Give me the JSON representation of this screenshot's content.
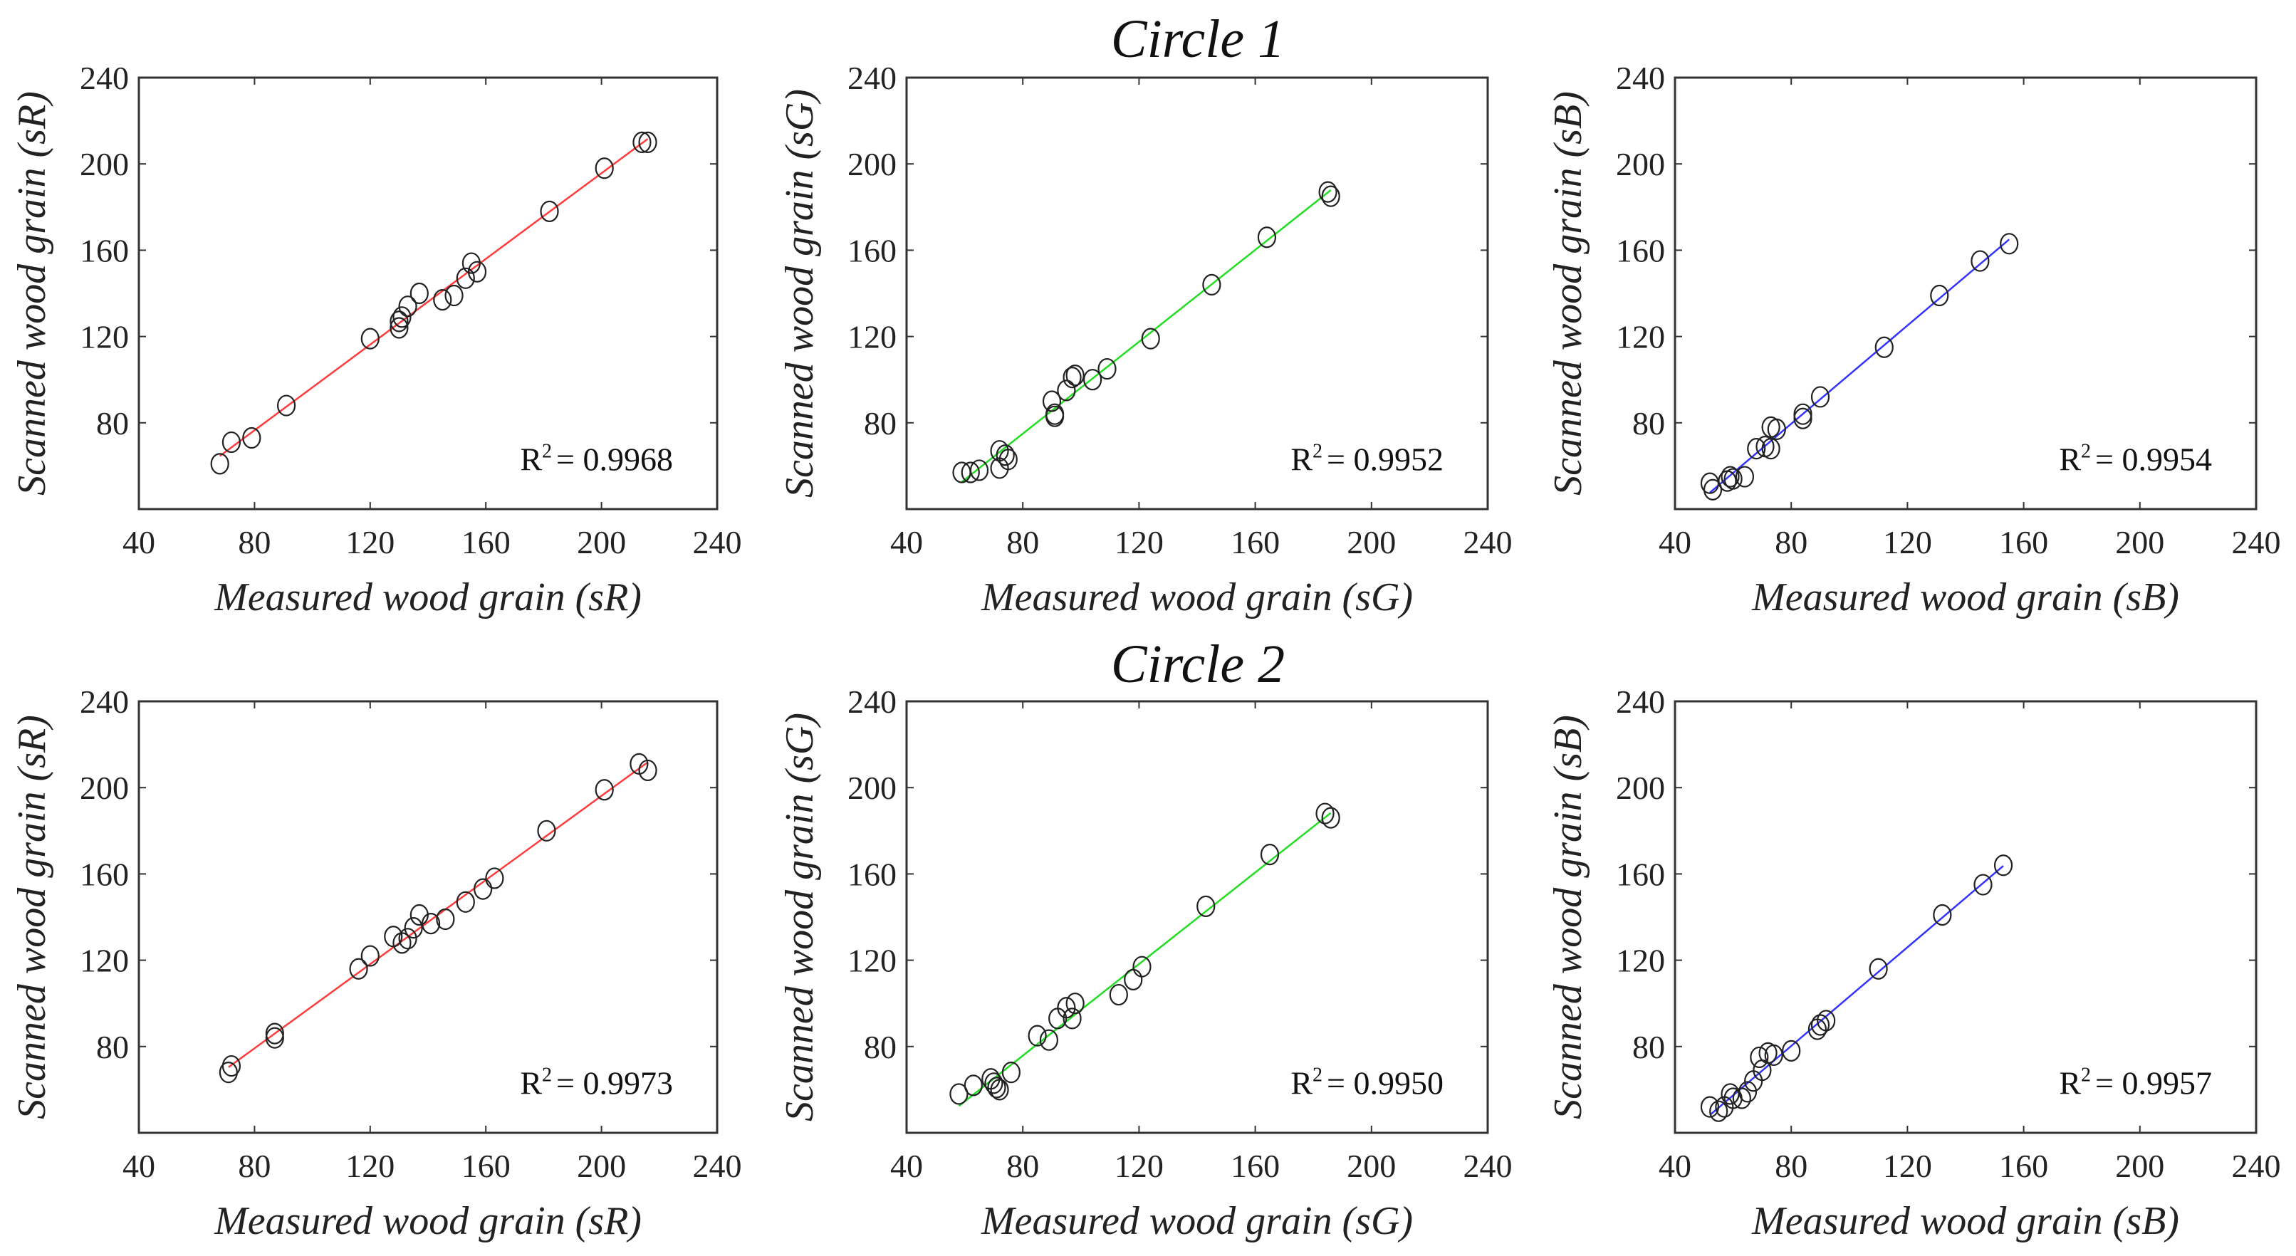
{
  "titles": [
    "Circle 1",
    "Circle 2"
  ],
  "chart_data": [
    {
      "type": "scatter",
      "group": "Circle 1",
      "xlabel": "Measured wood grain (sR)",
      "ylabel": "Scanned wood grain (sR)",
      "xlim": [
        40,
        240
      ],
      "ylim": [
        40,
        240
      ],
      "xticks": [
        40,
        80,
        120,
        160,
        200,
        240
      ],
      "yticks": [
        80,
        120,
        160,
        200,
        240
      ],
      "r2_label": "R",
      "r2_sup": "2",
      "r2_value": "= 0.9968",
      "fit_color": "#ff3b3b",
      "points": [
        [
          68,
          61
        ],
        [
          72,
          71
        ],
        [
          79,
          73
        ],
        [
          91,
          88
        ],
        [
          120,
          119
        ],
        [
          130,
          124
        ],
        [
          130,
          127
        ],
        [
          131,
          129
        ],
        [
          133,
          134
        ],
        [
          137,
          140
        ],
        [
          145,
          137
        ],
        [
          149,
          139
        ],
        [
          153,
          147
        ],
        [
          155,
          154
        ],
        [
          157,
          150
        ],
        [
          182,
          178
        ],
        [
          201,
          198
        ],
        [
          214,
          210
        ],
        [
          216,
          210
        ]
      ]
    },
    {
      "type": "scatter",
      "group": "Circle 1",
      "xlabel": "Measured wood grain (sG)",
      "ylabel": "Scanned wood grain (sG)",
      "xlim": [
        40,
        240
      ],
      "ylim": [
        40,
        240
      ],
      "xticks": [
        40,
        80,
        120,
        160,
        200,
        240
      ],
      "yticks": [
        80,
        120,
        160,
        200,
        240
      ],
      "r2_label": "R",
      "r2_sup": "2",
      "r2_value": "= 0.9952",
      "fit_color": "#22dd22",
      "points": [
        [
          59,
          57
        ],
        [
          62,
          57
        ],
        [
          65,
          58
        ],
        [
          72,
          59
        ],
        [
          72,
          67
        ],
        [
          74,
          65
        ],
        [
          75,
          63
        ],
        [
          90,
          90
        ],
        [
          91,
          84
        ],
        [
          91,
          83
        ],
        [
          95,
          95
        ],
        [
          97,
          101
        ],
        [
          98,
          102
        ],
        [
          104,
          100
        ],
        [
          109,
          105
        ],
        [
          124,
          119
        ],
        [
          145,
          144
        ],
        [
          164,
          166
        ],
        [
          185,
          187
        ],
        [
          186,
          185
        ]
      ]
    },
    {
      "type": "scatter",
      "group": "Circle 1",
      "xlabel": "Measured wood grain (sB)",
      "ylabel": "Scanned wood grain (sB)",
      "xlim": [
        40,
        240
      ],
      "ylim": [
        40,
        240
      ],
      "xticks": [
        40,
        80,
        120,
        160,
        200,
        240
      ],
      "yticks": [
        80,
        120,
        160,
        200,
        240
      ],
      "r2_label": "R",
      "r2_sup": "2",
      "r2_value": "= 0.9954",
      "fit_color": "#3333ff",
      "points": [
        [
          52,
          52
        ],
        [
          53,
          49
        ],
        [
          58,
          53
        ],
        [
          59,
          55
        ],
        [
          60,
          54
        ],
        [
          64,
          55
        ],
        [
          68,
          68
        ],
        [
          71,
          69
        ],
        [
          73,
          78
        ],
        [
          73,
          68
        ],
        [
          75,
          77
        ],
        [
          84,
          84
        ],
        [
          84,
          82
        ],
        [
          90,
          92
        ],
        [
          112,
          115
        ],
        [
          131,
          139
        ],
        [
          145,
          155
        ],
        [
          155,
          163
        ]
      ]
    },
    {
      "type": "scatter",
      "group": "Circle 2",
      "xlabel": "Measured wood grain (sR)",
      "ylabel": "Scanned wood grain (sR)",
      "xlim": [
        40,
        240
      ],
      "ylim": [
        40,
        240
      ],
      "xticks": [
        40,
        80,
        120,
        160,
        200,
        240
      ],
      "yticks": [
        80,
        120,
        160,
        200,
        240
      ],
      "r2_label": "R",
      "r2_sup": "2",
      "r2_value": "= 0.9973",
      "fit_color": "#ff3b3b",
      "points": [
        [
          71,
          68
        ],
        [
          72,
          71
        ],
        [
          87,
          86
        ],
        [
          87,
          84
        ],
        [
          116,
          116
        ],
        [
          120,
          122
        ],
        [
          128,
          131
        ],
        [
          131,
          128
        ],
        [
          133,
          130
        ],
        [
          135,
          135
        ],
        [
          137,
          141
        ],
        [
          141,
          137
        ],
        [
          146,
          139
        ],
        [
          153,
          147
        ],
        [
          159,
          153
        ],
        [
          163,
          158
        ],
        [
          181,
          180
        ],
        [
          201,
          199
        ],
        [
          213,
          211
        ],
        [
          216,
          208
        ]
      ]
    },
    {
      "type": "scatter",
      "group": "Circle 2",
      "xlabel": "Measured wood grain (sG)",
      "ylabel": "Scanned wood grain (sG)",
      "xlim": [
        40,
        240
      ],
      "ylim": [
        40,
        240
      ],
      "xticks": [
        40,
        80,
        120,
        160,
        200,
        240
      ],
      "yticks": [
        80,
        120,
        160,
        200,
        240
      ],
      "r2_label": "R",
      "r2_sup": "2",
      "r2_value": "= 0.9950",
      "fit_color": "#22dd22",
      "points": [
        [
          58,
          58
        ],
        [
          63,
          62
        ],
        [
          69,
          65
        ],
        [
          70,
          63
        ],
        [
          71,
          61
        ],
        [
          72,
          60
        ],
        [
          76,
          68
        ],
        [
          85,
          85
        ],
        [
          89,
          83
        ],
        [
          92,
          93
        ],
        [
          95,
          98
        ],
        [
          97,
          93
        ],
        [
          98,
          100
        ],
        [
          113,
          104
        ],
        [
          118,
          111
        ],
        [
          121,
          117
        ],
        [
          143,
          145
        ],
        [
          165,
          169
        ],
        [
          184,
          188
        ],
        [
          186,
          186
        ]
      ]
    },
    {
      "type": "scatter",
      "group": "Circle 2",
      "xlabel": "Measured wood grain (sB)",
      "ylabel": "Scanned wood grain (sB)",
      "xlim": [
        40,
        240
      ],
      "ylim": [
        40,
        240
      ],
      "xticks": [
        40,
        80,
        120,
        160,
        200,
        240
      ],
      "yticks": [
        80,
        120,
        160,
        200,
        240
      ],
      "r2_label": "R",
      "r2_sup": "2",
      "r2_value": "= 0.9957",
      "fit_color": "#3333ff",
      "points": [
        [
          52,
          52
        ],
        [
          55,
          50
        ],
        [
          57,
          52
        ],
        [
          59,
          58
        ],
        [
          60,
          56
        ],
        [
          63,
          56
        ],
        [
          65,
          59
        ],
        [
          67,
          64
        ],
        [
          69,
          75
        ],
        [
          70,
          69
        ],
        [
          72,
          77
        ],
        [
          74,
          76
        ],
        [
          80,
          78
        ],
        [
          89,
          88
        ],
        [
          90,
          90
        ],
        [
          92,
          92
        ],
        [
          110,
          116
        ],
        [
          132,
          141
        ],
        [
          146,
          155
        ],
        [
          153,
          164
        ]
      ]
    }
  ]
}
